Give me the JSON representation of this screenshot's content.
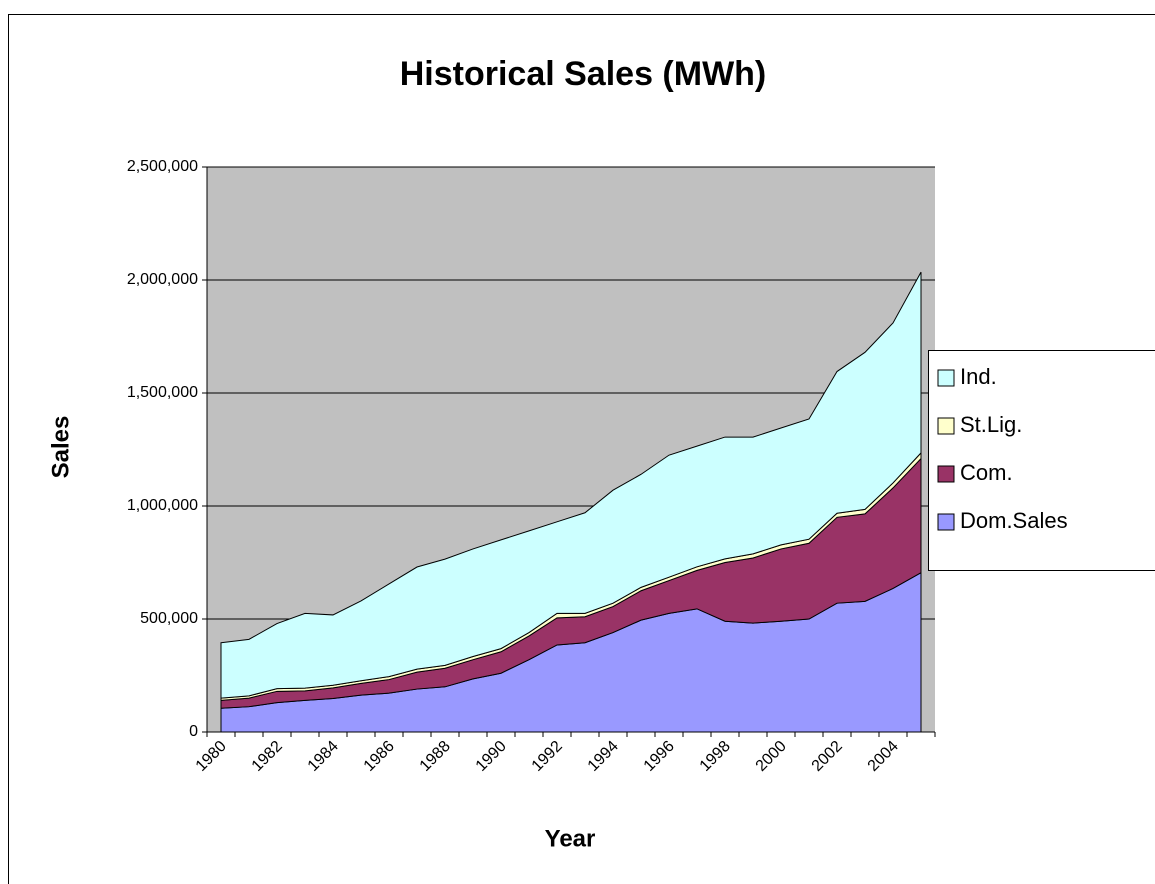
{
  "chart_data": {
    "type": "stacked_area",
    "title": "Historical Sales (MWh)",
    "x_label": "Year",
    "y_label": "Sales",
    "categories": [
      "1980",
      null,
      "1982",
      null,
      "1984",
      null,
      "1986",
      null,
      "1988",
      null,
      "1990",
      null,
      "1992",
      null,
      "1994",
      null,
      "1996",
      null,
      "1998",
      null,
      "2000",
      null,
      "2002",
      null,
      "2004",
      null
    ],
    "series": [
      {
        "name": "Dom.Sales",
        "color": "#9999ff",
        "values": [
          105000,
          112000,
          130000,
          140000,
          148000,
          163000,
          172000,
          190000,
          200000,
          235000,
          260000,
          320000,
          385000,
          395000,
          440000,
          495000,
          525000,
          545000,
          490000,
          482000,
          490000,
          500000,
          570000,
          578000,
          635000,
          705000
        ]
      },
      {
        "name": "Com.",
        "color": "#993366",
        "values": [
          35000,
          38000,
          50000,
          42000,
          47000,
          52000,
          60000,
          75000,
          82000,
          85000,
          95000,
          105000,
          120000,
          115000,
          115000,
          130000,
          145000,
          170000,
          260000,
          288000,
          320000,
          335000,
          380000,
          387000,
          445000,
          505000
        ]
      },
      {
        "name": "St.Lig.",
        "color": "#ffffcc",
        "values": [
          10000,
          10000,
          12000,
          12000,
          12000,
          12000,
          13000,
          13000,
          13000,
          14000,
          14000,
          15000,
          20000,
          15000,
          15000,
          15000,
          15000,
          16000,
          16000,
          18000,
          18000,
          18000,
          18000,
          20000,
          22000,
          25000
        ]
      },
      {
        "name": "Ind.",
        "color": "#ccffff",
        "values": [
          245000,
          250000,
          288000,
          331000,
          311000,
          353000,
          410000,
          452000,
          470000,
          476000,
          481000,
          450000,
          405000,
          445000,
          500000,
          500000,
          540000,
          534000,
          539000,
          517000,
          517000,
          532000,
          627000,
          695000,
          708000,
          800000
        ]
      }
    ],
    "ylim": [
      0,
      2500000
    ],
    "yticks": [
      0,
      {
        "value": 500000,
        "label": "500,000"
      },
      {
        "value": 1000000,
        "label": "1,000,000"
      },
      {
        "value": 1500000,
        "label": "1,500,000"
      },
      {
        "value": 2000000,
        "label": "2,000,000"
      },
      {
        "value": 2500000,
        "label": "2,500,000"
      }
    ],
    "grid": true,
    "plot_background": "#c0c0c0",
    "legend": "right"
  }
}
